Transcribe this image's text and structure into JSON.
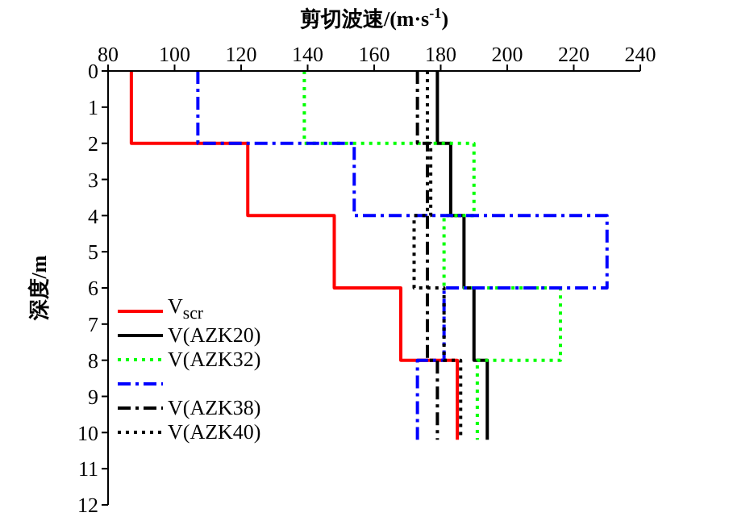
{
  "chart_data": {
    "type": "line",
    "xlabel": "剪切波速/(m·s$^{-1}$)",
    "ylabel": "深度/m",
    "xlim": [
      80,
      240
    ],
    "xticks": [
      80,
      100,
      120,
      140,
      160,
      180,
      200,
      220,
      240
    ],
    "ylim": [
      12,
      0
    ],
    "yticks": [
      0,
      1,
      2,
      3,
      4,
      5,
      6,
      7,
      8,
      9,
      10,
      11,
      12
    ],
    "grid": false,
    "legend": "bottom left",
    "marker": "none",
    "series": [
      {
        "name": "V$_{scr}$",
        "color": "#ff0000",
        "line_style": "solid",
        "x": [
          87,
          87,
          122,
          122,
          148,
          148,
          168,
          168,
          185,
          185
        ],
        "values": [
          0,
          2,
          2,
          4,
          4,
          6,
          6,
          8,
          8,
          10.2
        ]
      },
      {
        "name": "V(AZK20)",
        "color": "#000000",
        "line_style": "solid",
        "x": [
          179,
          179,
          183,
          183,
          187,
          187,
          190,
          190,
          194,
          194
        ],
        "values": [
          0,
          2,
          2,
          4,
          4,
          6,
          6,
          8,
          8,
          10.2
        ]
      },
      {
        "name": "V(AZK32)",
        "color": "#00ff00",
        "line_style": "dotted",
        "x": [
          139,
          139,
          190,
          190,
          181,
          181,
          216,
          216,
          191,
          191
        ],
        "values": [
          0,
          2,
          2,
          4,
          4,
          6,
          6,
          8,
          8,
          10.2
        ]
      },
      {
        "color": "#0000ff",
        "line_style": "dashdot",
        "x": [
          107,
          107,
          154,
          154,
          230,
          230,
          181,
          181,
          173,
          173
        ],
        "values": [
          0,
          2,
          2,
          4,
          4,
          6,
          6,
          8,
          8,
          10.2
        ]
      },
      {
        "name": "V(AZK38)",
        "color": "#000000",
        "line_style": "dashdot",
        "x": [
          173,
          173,
          176,
          176,
          176,
          176,
          176,
          176,
          179,
          179
        ],
        "values": [
          0,
          2,
          2,
          4,
          4,
          6,
          6,
          8,
          8,
          10.2
        ]
      },
      {
        "name": "V(AZK40)",
        "color": "#000000",
        "line_style": "dotted",
        "x": [
          176,
          176,
          177,
          177,
          172,
          172,
          181,
          181,
          186,
          186
        ],
        "values": [
          0,
          2,
          2,
          4,
          4,
          6,
          6,
          8,
          8,
          10.2
        ]
      }
    ]
  }
}
